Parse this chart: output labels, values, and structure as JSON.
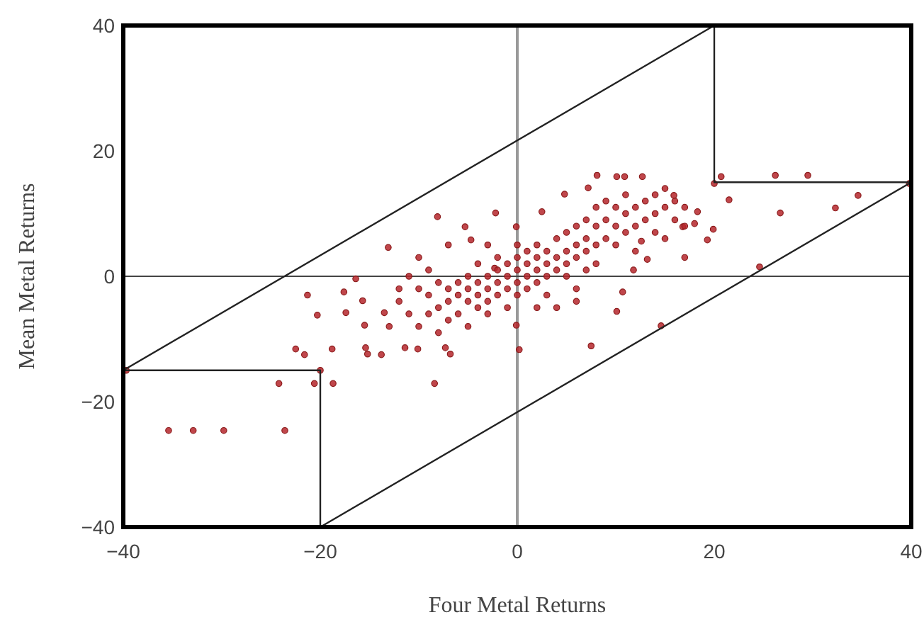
{
  "chart_data": {
    "type": "scatter",
    "xlabel": "Four Metal Returns",
    "ylabel": "Mean Metal Returns",
    "xlim": [
      -40,
      40
    ],
    "ylim": [
      -40,
      40
    ],
    "xticks": [
      -40,
      -20,
      0,
      20,
      40
    ],
    "yticks": [
      -40,
      -20,
      0,
      20,
      40
    ],
    "grid": false,
    "ref_lines": [
      {
        "axis": "x",
        "value": 0,
        "color": "#999999"
      },
      {
        "axis": "y",
        "value": 0,
        "color": "#444444"
      }
    ],
    "series": [
      {
        "marker": "circle",
        "color": "#b5262b",
        "x": [
          -35.4,
          -32.9,
          -29.8,
          -23.6,
          -24.2,
          -20.6,
          -18.7,
          -20,
          -39.7,
          -22.5,
          -21.6,
          -18.8,
          -20.3,
          -21.3,
          -17.6,
          -16.4,
          -17.4,
          -15.7,
          -15.5,
          -15.4,
          -15.2,
          -13.8,
          -13.1,
          -13.5,
          -11.4,
          -10.1,
          -8.4,
          -8.1,
          -7.3,
          -6.8,
          -5.3,
          -4.7,
          -2.2,
          -0.1,
          0.2,
          -0.1,
          7.5,
          10.1,
          10.7,
          11.8,
          8.1,
          10.1,
          10.9,
          12.7,
          14.6,
          17,
          19.3,
          19.9,
          20,
          20.7,
          21.5,
          24.6,
          26.2,
          26.7,
          29.5,
          32.3,
          34.6,
          39.8,
          18.3,
          18,
          15,
          15.9,
          16.8,
          13.2,
          12.6,
          7.2,
          4.8,
          2.5,
          -2.3,
          -12,
          -11,
          -11,
          -10,
          -10,
          -9,
          -9,
          -8,
          -8,
          -8,
          -7,
          -7,
          -7,
          -6,
          -6,
          -6,
          -5,
          -5,
          -5,
          -5,
          -4,
          -4,
          -4,
          -4,
          -3,
          -3,
          -3,
          -3,
          -2,
          -2,
          -2,
          -2,
          -1,
          -1,
          -1,
          -1,
          0,
          0,
          0,
          0,
          0,
          1,
          1,
          1,
          1,
          2,
          2,
          2,
          2,
          3,
          3,
          3,
          3,
          4,
          4,
          4,
          5,
          5,
          5,
          5,
          6,
          6,
          6,
          6,
          7,
          7,
          7,
          7,
          8,
          8,
          8,
          8,
          9,
          9,
          9,
          10,
          10,
          10,
          11,
          11,
          11,
          12,
          12,
          12,
          13,
          13,
          14,
          14,
          14,
          15,
          15,
          16,
          16,
          17,
          17,
          -9,
          -10,
          -7,
          -13,
          -12,
          -3,
          2,
          4,
          6
        ],
        "values": [
          -24.6,
          -24.6,
          -24.6,
          -24.6,
          -17.1,
          -17.1,
          -17.1,
          -15,
          -15,
          -11.6,
          -12.5,
          -11.6,
          -6.2,
          -3,
          -2.5,
          -0.4,
          -5.8,
          -3.9,
          -7.8,
          -11.4,
          -12.4,
          -12.5,
          4.6,
          -5.8,
          -11.4,
          -11.6,
          -17.1,
          9.5,
          -11.4,
          -12.4,
          7.9,
          5.8,
          10.1,
          7.9,
          -11.7,
          -7.8,
          -11.1,
          -5.6,
          -2.5,
          1,
          16.1,
          15.9,
          15.9,
          15.9,
          -7.9,
          3,
          5.8,
          7.5,
          14.8,
          15.9,
          12.2,
          1.5,
          16.1,
          10.1,
          16.1,
          10.9,
          12.9,
          14.8,
          10.3,
          8.4,
          14,
          12.9,
          7.9,
          2.7,
          5.6,
          14.1,
          13.1,
          10.3,
          1.3,
          -4,
          -6,
          0,
          -2,
          -8,
          -3,
          -6,
          -1,
          -5,
          -9,
          -2,
          -4,
          -7,
          -1,
          -3,
          -6,
          0,
          -2,
          -4,
          -8,
          -1,
          -3,
          -5,
          2,
          0,
          -2,
          -4,
          -6,
          1,
          -1,
          -3,
          3,
          0,
          -2,
          2,
          -5,
          1,
          -1,
          3,
          -3,
          5,
          0,
          2,
          -2,
          4,
          1,
          3,
          -1,
          5,
          0,
          2,
          4,
          -3,
          1,
          3,
          6,
          2,
          4,
          0,
          7,
          3,
          5,
          8,
          -2,
          4,
          6,
          9,
          1,
          5,
          8,
          11,
          2,
          6,
          9,
          12,
          5,
          8,
          11,
          7,
          10,
          13,
          8,
          11,
          4,
          9,
          12,
          7,
          10,
          13,
          6,
          11,
          9,
          12,
          8,
          11,
          1,
          3,
          5,
          -8,
          -2,
          5,
          -5,
          -5,
          -4
        ]
      },
      {
        "type": "line",
        "marker": "none",
        "color": "#222222",
        "x": [
          -40,
          20
        ],
        "values": [
          -15,
          40
        ]
      },
      {
        "type": "line",
        "marker": "none",
        "color": "#222222",
        "x": [
          -20,
          40
        ],
        "values": [
          -40,
          15
        ]
      },
      {
        "type": "line",
        "marker": "none",
        "color": "#222222",
        "x": [
          -40,
          -20,
          -20
        ],
        "values": [
          -15,
          -15,
          -40
        ]
      },
      {
        "type": "line",
        "marker": "none",
        "color": "#222222",
        "x": [
          20,
          20,
          40
        ],
        "values": [
          40,
          15,
          15
        ]
      }
    ]
  }
}
